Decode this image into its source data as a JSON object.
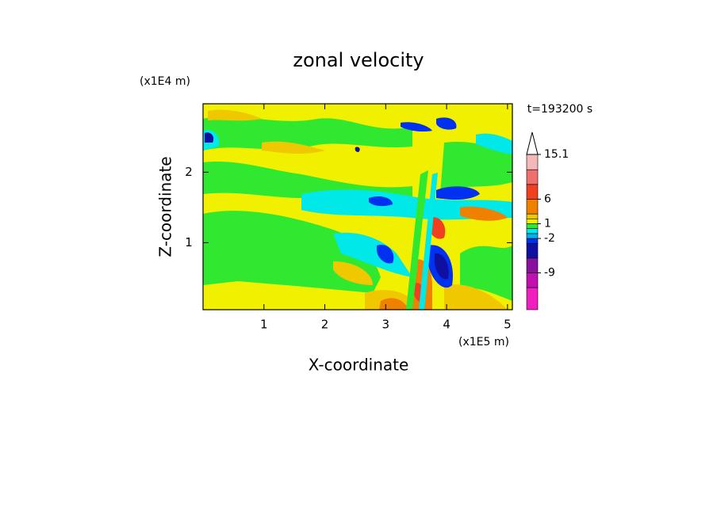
{
  "chart_data": {
    "type": "contour",
    "title": "zonal velocity",
    "x_label": "X-coordinate",
    "y_label": "Z-coordinate",
    "x_unit": "(x1E5 m)",
    "y_unit": "(x1E4 m)",
    "time_label": "t=193200 s",
    "xlim": [
      0,
      5.08
    ],
    "ylim": [
      0.05,
      2.97
    ],
    "xticks": [
      1,
      2,
      3,
      4,
      5
    ],
    "yticks": [
      1,
      2
    ],
    "colorbar": {
      "levels": [
        -16.5,
        -12,
        -9,
        -6,
        -3,
        -2,
        -1,
        0,
        1,
        2,
        3,
        6,
        9,
        12,
        15.1
      ],
      "colors": [
        "#f020c0",
        "#c010b0",
        "#8a10a0",
        "#1010a0",
        "#0030f0",
        "#00b0f0",
        "#00e8e8",
        "#30e830",
        "#f0f000",
        "#f0c800",
        "#f08000",
        "#f04020",
        "#f07070",
        "#f4b8b8"
      ],
      "ticks": [
        15.1,
        6,
        1,
        -2,
        -9
      ],
      "extend_color": "#ffffff"
    }
  }
}
